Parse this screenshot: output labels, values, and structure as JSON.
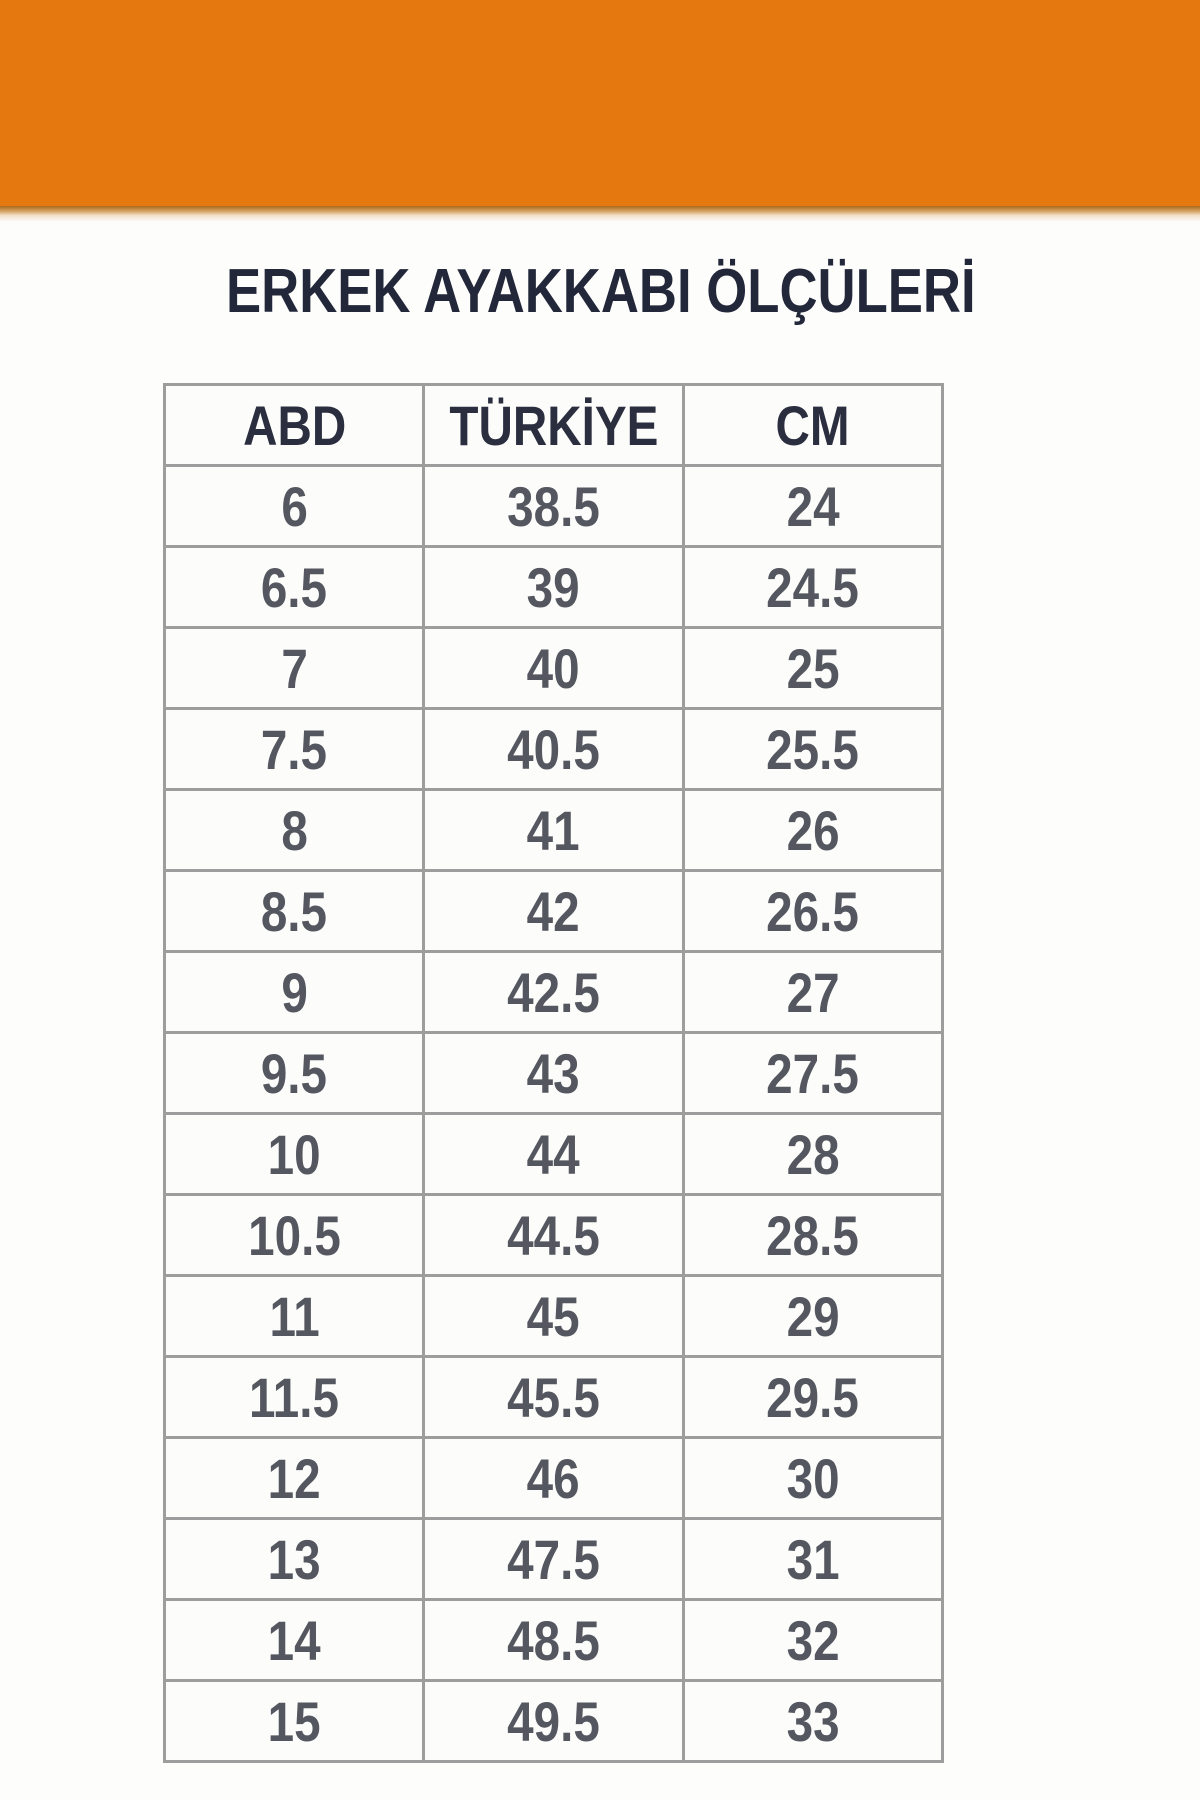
{
  "title": "ERKEK AYAKKABI ÖLÇÜLERİ",
  "banner": {
    "color": "#e5780e"
  },
  "table": {
    "columns": [
      "ABD",
      "TÜRKİYE",
      "CM"
    ],
    "rows": [
      [
        "6",
        "38.5",
        "24"
      ],
      [
        "6.5",
        "39",
        "24.5"
      ],
      [
        "7",
        "40",
        "25"
      ],
      [
        "7.5",
        "40.5",
        "25.5"
      ],
      [
        "8",
        "41",
        "26"
      ],
      [
        "8.5",
        "42",
        "26.5"
      ],
      [
        "9",
        "42.5",
        "27"
      ],
      [
        "9.5",
        "43",
        "27.5"
      ],
      [
        "10",
        "44",
        "28"
      ],
      [
        "10.5",
        "44.5",
        "28.5"
      ],
      [
        "11",
        "45",
        "29"
      ],
      [
        "11.5",
        "45.5",
        "29.5"
      ],
      [
        "12",
        "46",
        "30"
      ],
      [
        "13",
        "47.5",
        "31"
      ],
      [
        "14",
        "48.5",
        "32"
      ],
      [
        "15",
        "49.5",
        "33"
      ]
    ]
  },
  "chart_data": {
    "type": "table",
    "title": "ERKEK AYAKKABI ÖLÇÜLERİ",
    "columns": [
      "ABD",
      "TÜRKİYE",
      "CM"
    ],
    "rows": [
      [
        "6",
        "38.5",
        "24"
      ],
      [
        "6.5",
        "39",
        "24.5"
      ],
      [
        "7",
        "40",
        "25"
      ],
      [
        "7.5",
        "40.5",
        "25.5"
      ],
      [
        "8",
        "41",
        "26"
      ],
      [
        "8.5",
        "42",
        "26.5"
      ],
      [
        "9",
        "42.5",
        "27"
      ],
      [
        "9.5",
        "43",
        "27.5"
      ],
      [
        "10",
        "44",
        "28"
      ],
      [
        "10.5",
        "44.5",
        "28.5"
      ],
      [
        "11",
        "45",
        "29"
      ],
      [
        "11.5",
        "45.5",
        "29.5"
      ],
      [
        "12",
        "46",
        "30"
      ],
      [
        "13",
        "47.5",
        "31"
      ],
      [
        "14",
        "48.5",
        "32"
      ],
      [
        "15",
        "49.5",
        "33"
      ]
    ]
  },
  "colors": {
    "banner_orange": "#e5780e",
    "banner_shadow": "#a86b1e",
    "table_border": "#9d9d9d",
    "header_text": "#2a2e3f",
    "data_text": "#54575f",
    "title_text": "#23273a",
    "cell_background": "#fcfcfb"
  }
}
